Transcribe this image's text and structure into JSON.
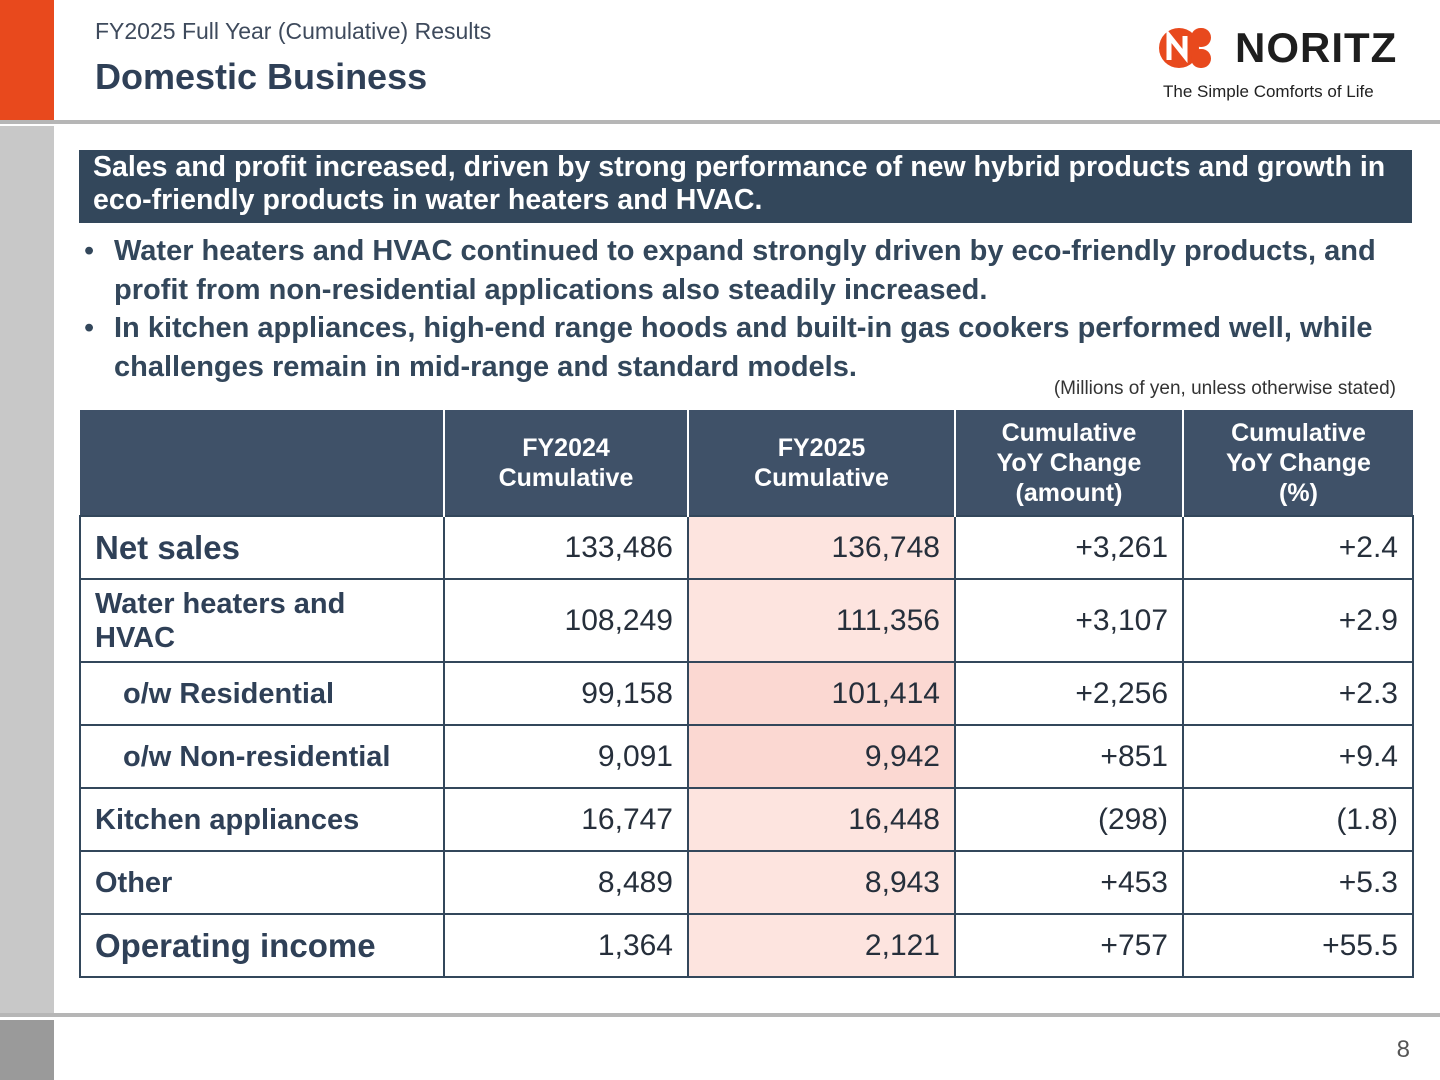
{
  "header": {
    "subtitle": "FY2025 Full Year (Cumulative) Results",
    "title": "Domestic Business"
  },
  "logo": {
    "wordmark": "NORITZ",
    "tagline": "The Simple Comforts of Life",
    "brand_color": "#e8491d"
  },
  "banner": {
    "text": "Sales and profit increased, driven by strong performance of new hybrid products and growth in eco-friendly products in water heaters and HVAC."
  },
  "bullets": [
    "Water heaters and HVAC continued to expand strongly driven by eco-friendly products, and profit from non-residential applications also steadily increased.",
    "In kitchen appliances, high-end range hoods and built-in gas cookers performed well, while challenges remain in mid-range and standard models."
  ],
  "units_note": "(Millions of yen, unless otherwise stated)",
  "table": {
    "headers": {
      "c0": "",
      "c1a": "FY2024",
      "c1b": "Cumulative",
      "c2a": "FY2025",
      "c2b": "Cumulative",
      "c3a": "Cumulative",
      "c3b": "YoY Change",
      "c3c": "(amount)",
      "c4a": "Cumulative",
      "c4b": "YoY Change",
      "c4c": "(%)"
    },
    "rows": [
      {
        "label": "Net sales",
        "fy2024": "133,486",
        "fy2025": "136,748",
        "yoy_amount": "+3,261",
        "yoy_pct": "+2.4"
      },
      {
        "label": "Water heaters and HVAC",
        "fy2024": "108,249",
        "fy2025": "111,356",
        "yoy_amount": "+3,107",
        "yoy_pct": "+2.9"
      },
      {
        "label": "o/w Residential",
        "fy2024": "99,158",
        "fy2025": "101,414",
        "yoy_amount": "+2,256",
        "yoy_pct": "+2.3"
      },
      {
        "label": "o/w Non-residential",
        "fy2024": "9,091",
        "fy2025": "9,942",
        "yoy_amount": "+851",
        "yoy_pct": "+9.4"
      },
      {
        "label": "Kitchen appliances",
        "fy2024": "16,747",
        "fy2025": "16,448",
        "yoy_amount": "(298)",
        "yoy_pct": "(1.8)"
      },
      {
        "label": "Other",
        "fy2024": "8,489",
        "fy2025": "8,943",
        "yoy_amount": "+453",
        "yoy_pct": "+5.3"
      },
      {
        "label": "Operating income",
        "fy2024": "1,364",
        "fy2025": "2,121",
        "yoy_amount": "+757",
        "yoy_pct": "+55.5"
      }
    ]
  },
  "page_number": "8"
}
